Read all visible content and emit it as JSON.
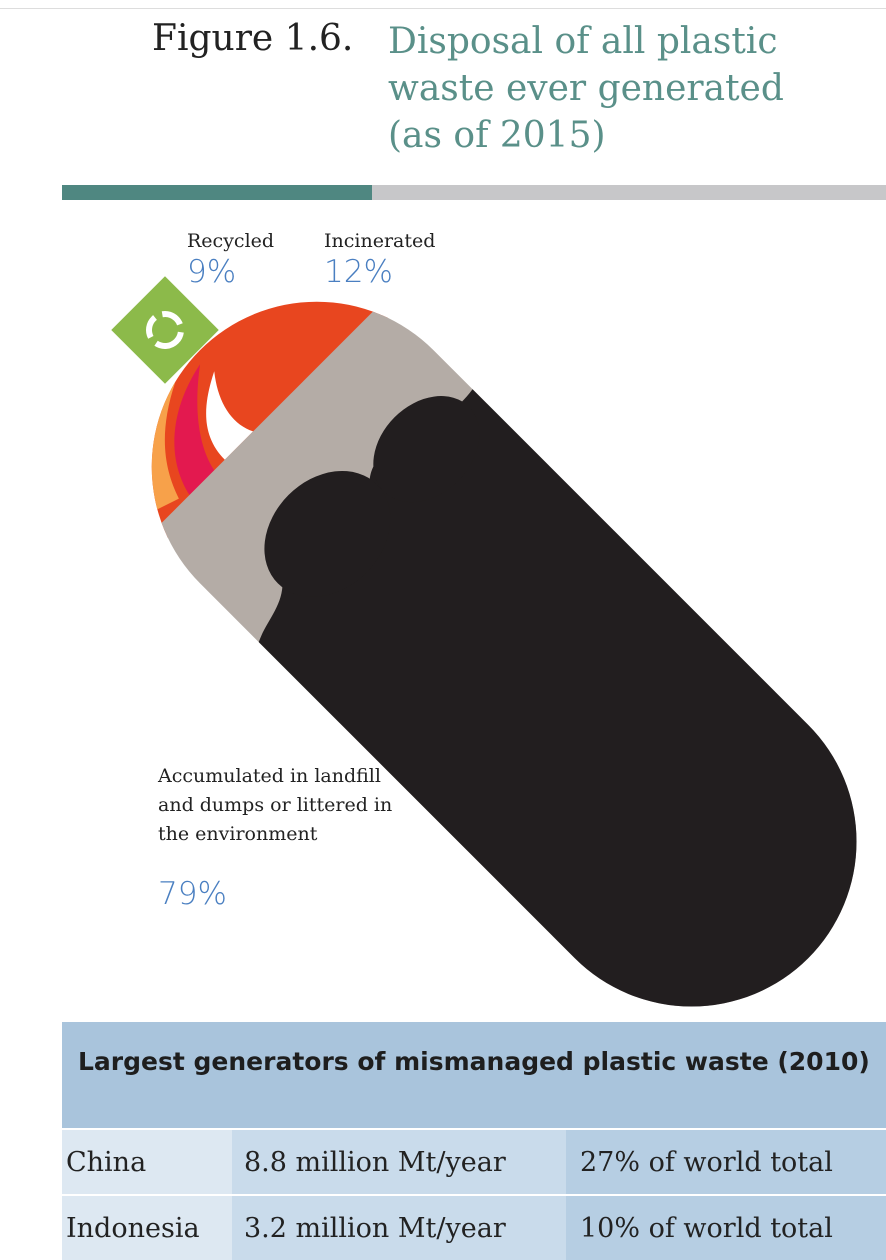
{
  "header": {
    "figure_label": "Figure 1.6.",
    "title": "Disposal of all plastic waste ever generated (as of 2015)"
  },
  "segments": [
    {
      "label": "Recycled",
      "share": "9%"
    },
    {
      "label": "Incinerated",
      "share": "12%"
    },
    {
      "label": "Accumulated in landfill and dumps or littered in the environment",
      "share": "79%"
    }
  ],
  "table": {
    "title": "Largest generators of mismanaged plastic waste (2010)",
    "rows": [
      [
        "China",
        "8.8 million Mt/year",
        "27% of world total"
      ],
      [
        "Indonesia",
        "3.2 million Mt/year",
        "10% of world total"
      ]
    ]
  }
}
